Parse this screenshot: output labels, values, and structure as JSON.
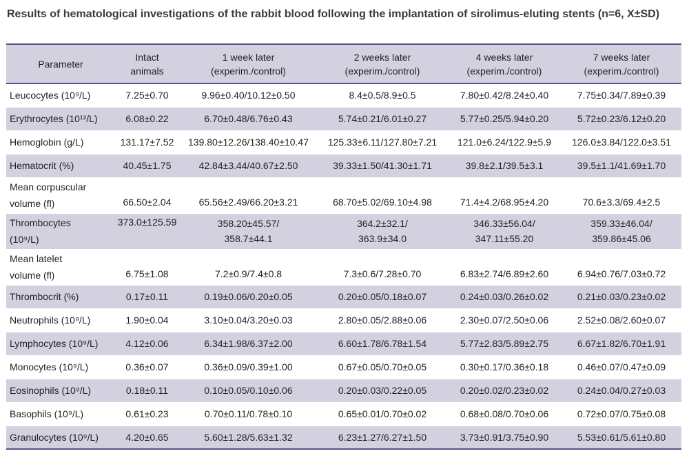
{
  "title": "Results of hematological investigations of the rabbit blood following the implantation of sirolimus-eluting stents (n=6, X±SD)",
  "headers": {
    "parameter": "Parameter",
    "intact_1": "Intact",
    "intact_2": "animals",
    "w1_1": "1 week later",
    "w1_2": "(experim./control)",
    "w2_1": "2 weeks later",
    "w2_2": "(experim./control)",
    "w4_1": "4 weeks later",
    "w4_2": "(experim./control)",
    "w7_1": "7 weeks later",
    "w7_2": "(experim./control)"
  },
  "rows": [
    {
      "param": "Leucocytes (10⁹/L)",
      "intact": "7.25±0.70",
      "w1": "9.96±0.40/10.12±0.50",
      "w2": "8.4±0.5/8.9±0.5",
      "w4": "7.80±0.42/8.24±0.40",
      "w7": "7.75±0.34/7.89±0.39"
    },
    {
      "param": "Erythrocytes (10¹²/L)",
      "intact": "6.08±0.22",
      "w1": "6.70±0.48/6.76±0.43",
      "w2": "5.74±0.21/6.01±0.27",
      "w4": "5.77±0.25/5.94±0.20",
      "w7": "5.72±0.23/6.12±0.20"
    },
    {
      "param": "Hemoglobin (g/L)",
      "intact": "131.17±7.52",
      "w1": "139.80±12.26/138.40±10.47",
      "w2": "125.33±6.11/127.80±7.21",
      "w4": "121.0±6.24/122.9±5.9",
      "w7": "126.0±3.84/122.0±3.51"
    },
    {
      "param": "Hematocrit (%)",
      "intact": "40.45±1.75",
      "w1": "42.84±3.44/40.67±2.50",
      "w2": "39.33±1.50/41.30±1.71",
      "w4": "39.8±2.1/39.5±3.1",
      "w7": "39.5±1.1/41.69±1.70"
    },
    {
      "param_1": "Mean corpuscular",
      "param_2": "volume (fl)",
      "intact": "66.50±2.04",
      "w1": "65.56±2.49/66.20±3.21",
      "w2": "68.70±5.02/69.10±4.98",
      "w4": "71.4±4.2/68.95±4.20",
      "w7": "70.6±3.3/69.4±2.5"
    },
    {
      "param_1": "Thrombocytes",
      "param_2": "(10⁹/L)",
      "intact": "373.0±125.59",
      "w1_1": "358.20±45.57/",
      "w1_2": "358.7±44.1",
      "w2_1": "364.2±32.1/",
      "w2_2": "363.9±34.0",
      "w4_1": "346.33±56.04/",
      "w4_2": "347.11±55.20",
      "w7_1": "359.33±46.04/",
      "w7_2": "359.86±45.06"
    },
    {
      "param_1": "Mean latelet",
      "param_2": "volume (fl)",
      "intact": "6.75±1.08",
      "w1": "7.2±0.9/7.4±0.8",
      "w2": "7.3±0.6/7.28±0.70",
      "w4": "6.83±2.74/6.89±2.60",
      "w7": "6.94±0.76/7.03±0.72"
    },
    {
      "param": "Thrombocrit (%)",
      "intact": "0.17±0.11",
      "w1": "0.19±0.06/0.20±0.05",
      "w2": "0.20±0.05/0.18±0.07",
      "w4": "0.24±0.03/0.26±0.02",
      "w7": "0.21±0.03/0.23±0.02"
    },
    {
      "param": "Neutrophils (10⁹/L)",
      "intact": "1.90±0.04",
      "w1": "3.10±0.04/3.20±0.03",
      "w2": "2.80±0.05/2.88±0.06",
      "w4": "2.30±0.07/2.50±0.06",
      "w7": "2.52±0.08/2.60±0.07"
    },
    {
      "param": "Lymphocytes (10⁹/L)",
      "intact": "4.12±0.06",
      "w1": "6.34±1.98/6.37±2.00",
      "w2": "6.60±1.78/6.78±1.54",
      "w4": "5.77±2.83/5.89±2.75",
      "w7": "6.67±1.82/6.70±1.91"
    },
    {
      "param": "Monocytes (10⁹/L)",
      "intact": "0.36±0.07",
      "w1": "0.36±0.09/0.39±1.00",
      "w2": "0.67±0.05/0.70±0.05",
      "w4": "0.30±0.17/0.36±0.18",
      "w7": "0.46±0.07/0.47±0.09"
    },
    {
      "param": "Eosinophils (10⁹/L)",
      "intact": "0.18±0.11",
      "w1": "0.10±0.05/0.10±0.06",
      "w2": "0.20±0.03/0.22±0.05",
      "w4": "0.20±0.02/0.23±0.02",
      "w7": "0.24±0.04/0.27±0.03"
    },
    {
      "param": "Basophils (10⁹/L)",
      "intact": "0.61±0.23",
      "w1": "0.70±0.11/0.78±0.10",
      "w2": "0.65±0.01/0.70±0.02",
      "w4": "0.68±0.08/0.70±0.06",
      "w7": "0.72±0.07/0.75±0.08"
    },
    {
      "param": "Granulocytes (10⁹/L)",
      "intact": "4.20±0.65",
      "w1": "5.60±1.28/5.63±1.32",
      "w2": "6.23±1.27/6.27±1.50",
      "w4": "3.73±0.91/3.75±0.90",
      "w7": "5.53±0.61/5.61±0.80"
    }
  ]
}
